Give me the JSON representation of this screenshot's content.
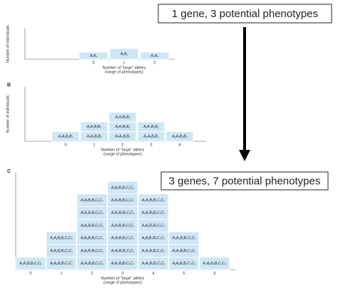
{
  "panels": [
    {
      "y_axis_label": "Number of individuals",
      "x_axis_label": "Number of \"large\" alleles",
      "x_axis_sublabel": "(range of phenotypes)",
      "columns": [
        {
          "x_label": "0",
          "genotypes": [
            "A₁A₁"
          ]
        },
        {
          "x_label": "1",
          "genotypes": [
            "A₁A₂"
          ]
        },
        {
          "x_label": "2",
          "genotypes": [
            "A₂A₂"
          ]
        }
      ]
    },
    {
      "letter": "B",
      "y_axis_label": "Number of individuals",
      "x_axis_label": "Number of \"large\" alleles",
      "x_axis_sublabel": "(range of phenotypes)",
      "columns": [
        {
          "x_label": "0",
          "genotypes": [
            "A₁A₁B₁B₁"
          ]
        },
        {
          "x_label": "1",
          "genotypes": [
            "A₁A₂B₁B₁",
            "A₁A₁B₁B₂"
          ]
        },
        {
          "x_label": "2",
          "genotypes": [
            "A₂A₂B₁B₁",
            "A₁A₂B₁B₂",
            "A₁A₁B₂B₂"
          ]
        },
        {
          "x_label": "3",
          "genotypes": [
            "A₂A₂B₁B₂",
            "A₁A₂B₂B₂"
          ]
        },
        {
          "x_label": "4",
          "genotypes": [
            "A₂A₂B₂B₂"
          ]
        }
      ]
    },
    {
      "letter": "C",
      "y_axis_label": "Number of individuals",
      "x_axis_label": "Number of \"large\" alleles",
      "x_axis_sublabel": "(range of phenotypes)",
      "columns": [
        {
          "x_label": "0",
          "genotypes": [
            "A₁A₁B₁B₁C₁C₁"
          ]
        },
        {
          "x_label": "1",
          "genotypes": [
            "A₁A₂B₁B₁C₁C₁",
            "A₁A₁B₁B₂C₁C₁",
            "A₁A₁B₁B₁C₁C₂"
          ]
        },
        {
          "x_label": "2",
          "genotypes": [
            "A₂A₂B₁B₁C₁C₁",
            "A₁A₁B₂B₂C₁C₁",
            "A₁A₁B₁B₁C₂C₂",
            "A₁A₂B₁B₂C₁C₁",
            "A₁A₂B₁B₁C₁C₂",
            "A₁A₁B₁B₂C₁C₂"
          ]
        },
        {
          "x_label": "3",
          "genotypes": [
            "A₁A₂B₁B₂C₁C₂",
            "A₂A₂B₁B₂C₁C₁",
            "A₂A₂B₁B₁C₁C₂",
            "A₁A₁B₂B₂C₁C₂",
            "A₁A₂B₂B₂C₁C₁",
            "A₁A₂B₁B₁C₂C₂",
            "A₁A₁B₁B₂C₂C₂"
          ]
        },
        {
          "x_label": "4",
          "genotypes": [
            "A₂A₂B₂B₂C₁C₁",
            "A₂A₂B₁B₁C₂C₂",
            "A₁A₁B₂B₂C₂C₂",
            "A₁A₂B₂B₂C₁C₂",
            "A₁A₂B₁B₂C₂C₂",
            "A₂A₂B₁B₂C₁C₂"
          ]
        },
        {
          "x_label": "5",
          "genotypes": [
            "A₁A₂B₂B₂C₂C₂",
            "A₂A₂B₁B₂C₂C₂",
            "A₂A₂B₂B₂C₁C₂"
          ]
        },
        {
          "x_label": "6",
          "genotypes": [
            "A₂A₂B₂B₂C₂C₂"
          ]
        }
      ]
    }
  ],
  "callouts": [
    "1 gene, 3 potential phenotypes",
    "3 genes, 7 potential phenotypes"
  ]
}
